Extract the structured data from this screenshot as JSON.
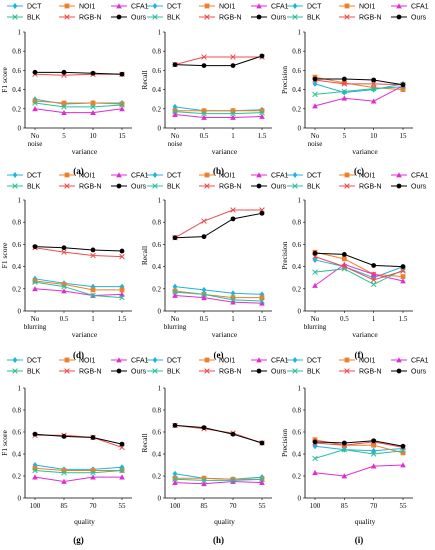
{
  "series_style": [
    {
      "name": "DCT",
      "color": "#1fb4dc",
      "marker": "diamond"
    },
    {
      "name": "NOI1",
      "color": "#f07f2a",
      "marker": "square"
    },
    {
      "name": "CFA1",
      "color": "#e02ed3",
      "marker": "triangle"
    },
    {
      "name": "BLK",
      "color": "#2bbf9a",
      "marker": "x"
    },
    {
      "name": "RGB-N",
      "color": "#ee4c4c",
      "marker": "x"
    },
    {
      "name": "Ours",
      "color": "#000000",
      "marker": "circle"
    }
  ],
  "chart_data": [
    {
      "id": "a",
      "type": "line",
      "caption": "(a)",
      "ylabel": "F1 score",
      "xlabel": "variance",
      "categories": [
        "No noise",
        "5",
        "10",
        "15"
      ],
      "ylim": [
        0,
        1
      ],
      "yticks": [
        "0",
        "0.2",
        "0.4",
        "0.6",
        "0.8",
        "1"
      ],
      "series": [
        {
          "name": "DCT",
          "values": [
            0.3,
            0.25,
            0.26,
            0.26
          ]
        },
        {
          "name": "NOI1",
          "values": [
            0.28,
            0.26,
            0.26,
            0.25
          ]
        },
        {
          "name": "CFA1",
          "values": [
            0.2,
            0.16,
            0.16,
            0.2
          ]
        },
        {
          "name": "BLK",
          "values": [
            0.26,
            0.22,
            0.22,
            0.24
          ]
        },
        {
          "name": "RGB-N",
          "values": [
            0.56,
            0.55,
            0.56,
            0.56
          ]
        },
        {
          "name": "Ours",
          "values": [
            0.58,
            0.58,
            0.57,
            0.56
          ]
        }
      ]
    },
    {
      "id": "b",
      "type": "line",
      "caption": "(b)",
      "ylabel": "Recall",
      "xlabel": "variance",
      "categories": [
        "No noise",
        "0.5",
        "1",
        "1.5"
      ],
      "ylim": [
        0,
        1
      ],
      "yticks": [
        "0",
        "0.2",
        "0.4",
        "0.6",
        "0.8",
        "1"
      ],
      "series": [
        {
          "name": "DCT",
          "values": [
            0.22,
            0.18,
            0.18,
            0.19
          ]
        },
        {
          "name": "NOI1",
          "values": [
            0.18,
            0.18,
            0.18,
            0.18
          ]
        },
        {
          "name": "CFA1",
          "values": [
            0.14,
            0.11,
            0.11,
            0.12
          ]
        },
        {
          "name": "BLK",
          "values": [
            0.17,
            0.15,
            0.15,
            0.16
          ]
        },
        {
          "name": "RGB-N",
          "values": [
            0.66,
            0.74,
            0.74,
            0.74
          ]
        },
        {
          "name": "Ours",
          "values": [
            0.66,
            0.65,
            0.65,
            0.75
          ]
        }
      ]
    },
    {
      "id": "c",
      "type": "line",
      "caption": "(c)",
      "ylabel": "Precision",
      "xlabel": "variance",
      "categories": [
        "No noise",
        "5",
        "10",
        "15"
      ],
      "ylim": [
        0,
        1
      ],
      "yticks": [
        "0",
        "0.2",
        "0.4",
        "0.6",
        "0.8",
        "1"
      ],
      "series": [
        {
          "name": "DCT",
          "values": [
            0.46,
            0.37,
            0.4,
            0.46
          ]
        },
        {
          "name": "NOI1",
          "values": [
            0.53,
            0.47,
            0.42,
            0.4
          ]
        },
        {
          "name": "CFA1",
          "values": [
            0.23,
            0.31,
            0.28,
            0.44
          ]
        },
        {
          "name": "BLK",
          "values": [
            0.35,
            0.38,
            0.41,
            0.43
          ]
        },
        {
          "name": "RGB-N",
          "values": [
            0.5,
            0.46,
            0.46,
            0.45
          ]
        },
        {
          "name": "Ours",
          "values": [
            0.51,
            0.51,
            0.5,
            0.45
          ]
        }
      ]
    },
    {
      "id": "d",
      "type": "line",
      "caption": "(d)",
      "ylabel": "F1 score",
      "xlabel": "variance",
      "categories": [
        "No blurring",
        "0.5",
        "1",
        "1.5"
      ],
      "ylim": [
        0,
        1
      ],
      "yticks": [
        "0",
        "0.2",
        "0.4",
        "0.6",
        "0.8",
        "1"
      ],
      "series": [
        {
          "name": "DCT",
          "values": [
            0.29,
            0.25,
            0.22,
            0.22
          ]
        },
        {
          "name": "NOI1",
          "values": [
            0.27,
            0.24,
            0.19,
            0.19
          ]
        },
        {
          "name": "CFA1",
          "values": [
            0.2,
            0.18,
            0.14,
            0.15
          ]
        },
        {
          "name": "BLK",
          "values": [
            0.26,
            0.22,
            0.14,
            0.12
          ]
        },
        {
          "name": "RGB-N",
          "values": [
            0.57,
            0.53,
            0.5,
            0.49
          ]
        },
        {
          "name": "Ours",
          "values": [
            0.58,
            0.57,
            0.55,
            0.54
          ]
        }
      ]
    },
    {
      "id": "e",
      "type": "line",
      "caption": "(e)",
      "ylabel": "Recall",
      "xlabel": "variance",
      "categories": [
        "No blurring",
        "0.5",
        "1",
        "1.5"
      ],
      "ylim": [
        0,
        1
      ],
      "yticks": [
        "0",
        "0.2",
        "0.4",
        "0.6",
        "0.8",
        "1"
      ],
      "series": [
        {
          "name": "DCT",
          "values": [
            0.22,
            0.19,
            0.16,
            0.15
          ]
        },
        {
          "name": "NOI1",
          "values": [
            0.18,
            0.15,
            0.12,
            0.12
          ]
        },
        {
          "name": "CFA1",
          "values": [
            0.14,
            0.12,
            0.08,
            0.07
          ]
        },
        {
          "name": "BLK",
          "values": [
            0.17,
            0.15,
            0.1,
            0.09
          ]
        },
        {
          "name": "RGB-N",
          "values": [
            0.66,
            0.81,
            0.91,
            0.91
          ]
        },
        {
          "name": "Ours",
          "values": [
            0.66,
            0.67,
            0.83,
            0.88
          ]
        }
      ]
    },
    {
      "id": "f",
      "type": "line",
      "caption": "(f)",
      "ylabel": "Precision",
      "xlabel": "variance",
      "categories": [
        "No blurring",
        "0.5",
        "1",
        "1.5"
      ],
      "ylim": [
        0,
        1
      ],
      "yticks": [
        "0",
        "0.2",
        "0.4",
        "0.6",
        "0.8",
        "1"
      ],
      "series": [
        {
          "name": "DCT",
          "values": [
            0.46,
            0.4,
            0.3,
            0.4
          ]
        },
        {
          "name": "NOI1",
          "values": [
            0.53,
            0.47,
            0.33,
            0.31
          ]
        },
        {
          "name": "CFA1",
          "values": [
            0.23,
            0.42,
            0.33,
            0.27
          ]
        },
        {
          "name": "BLK",
          "values": [
            0.35,
            0.38,
            0.24,
            0.37
          ]
        },
        {
          "name": "RGB-N",
          "values": [
            0.49,
            0.4,
            0.28,
            0.36
          ]
        },
        {
          "name": "Ours",
          "values": [
            0.52,
            0.51,
            0.41,
            0.4
          ]
        }
      ]
    },
    {
      "id": "g",
      "type": "line",
      "caption": "(g)",
      "ylabel": "F1 score",
      "xlabel": "quality",
      "categories": [
        "100",
        "85",
        "70",
        "55"
      ],
      "ylim": [
        0,
        1
      ],
      "yticks": [
        "0",
        "0.2",
        "0.4",
        "0.6",
        "0.8",
        "1"
      ],
      "series": [
        {
          "name": "DCT",
          "values": [
            0.3,
            0.26,
            0.26,
            0.28
          ]
        },
        {
          "name": "NOI1",
          "values": [
            0.27,
            0.25,
            0.25,
            0.25
          ]
        },
        {
          "name": "CFA1",
          "values": [
            0.19,
            0.15,
            0.19,
            0.19
          ]
        },
        {
          "name": "BLK",
          "values": [
            0.25,
            0.23,
            0.23,
            0.25
          ]
        },
        {
          "name": "RGB-N",
          "values": [
            0.57,
            0.57,
            0.55,
            0.46
          ]
        },
        {
          "name": "Ours",
          "values": [
            0.58,
            0.56,
            0.55,
            0.49
          ]
        }
      ]
    },
    {
      "id": "h",
      "type": "line",
      "caption": "(h)",
      "ylabel": "Recall",
      "xlabel": "quality",
      "categories": [
        "100",
        "85",
        "70",
        "55"
      ],
      "ylim": [
        0,
        1
      ],
      "yticks": [
        "0",
        "0.2",
        "0.4",
        "0.6",
        "0.8",
        "1"
      ],
      "series": [
        {
          "name": "DCT",
          "values": [
            0.22,
            0.18,
            0.17,
            0.19
          ]
        },
        {
          "name": "NOI1",
          "values": [
            0.18,
            0.18,
            0.17,
            0.17
          ]
        },
        {
          "name": "CFA1",
          "values": [
            0.14,
            0.13,
            0.15,
            0.14
          ]
        },
        {
          "name": "BLK",
          "values": [
            0.17,
            0.16,
            0.16,
            0.17
          ]
        },
        {
          "name": "RGB-N",
          "values": [
            0.66,
            0.63,
            0.59,
            0.5
          ]
        },
        {
          "name": "Ours",
          "values": [
            0.66,
            0.64,
            0.58,
            0.5
          ]
        }
      ]
    },
    {
      "id": "i",
      "type": "line",
      "caption": "(i)",
      "ylabel": "Precision",
      "xlabel": "quality",
      "categories": [
        "100",
        "85",
        "70",
        "55"
      ],
      "ylim": [
        0,
        1
      ],
      "yticks": [
        "0",
        "0.2",
        "0.4",
        "0.6",
        "0.8",
        "1"
      ],
      "series": [
        {
          "name": "DCT",
          "values": [
            0.47,
            0.44,
            0.43,
            0.45
          ]
        },
        {
          "name": "NOI1",
          "values": [
            0.53,
            0.48,
            0.48,
            0.41
          ]
        },
        {
          "name": "CFA1",
          "values": [
            0.23,
            0.2,
            0.29,
            0.3
          ]
        },
        {
          "name": "BLK",
          "values": [
            0.36,
            0.44,
            0.4,
            0.43
          ]
        },
        {
          "name": "RGB-N",
          "values": [
            0.5,
            0.48,
            0.51,
            0.46
          ]
        },
        {
          "name": "Ours",
          "values": [
            0.51,
            0.5,
            0.52,
            0.47
          ]
        }
      ]
    }
  ]
}
